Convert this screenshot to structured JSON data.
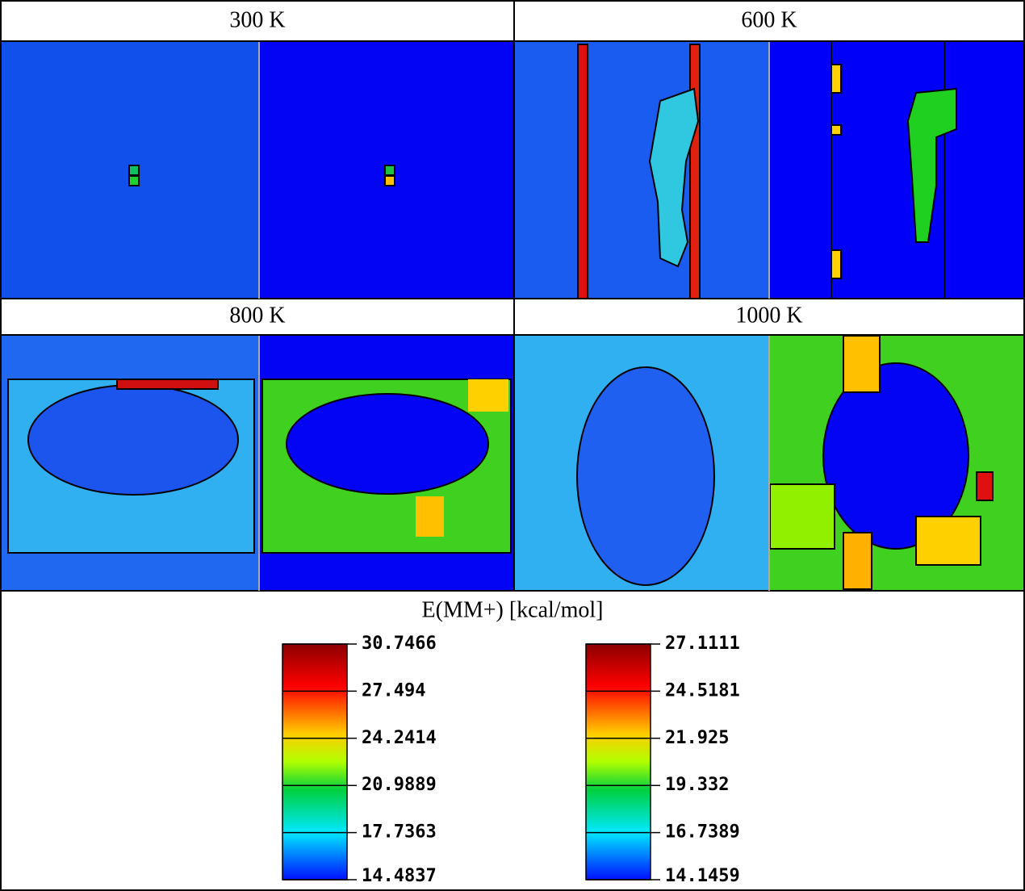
{
  "panels": [
    {
      "label": "300 K"
    },
    {
      "label": "600 K"
    },
    {
      "label": "800 K"
    },
    {
      "label": "1000 K"
    }
  ],
  "legend": {
    "title": "E(MM+) [kcal/mol]",
    "colorbars": [
      {
        "lim": [
          14.4837,
          30.7466
        ],
        "ticks": [
          30.7466,
          27.494,
          24.2414,
          20.9889,
          17.7363,
          14.4837
        ]
      },
      {
        "lim": [
          14.1459,
          27.1111
        ],
        "ticks": [
          27.1111,
          24.5181,
          21.925,
          19.332,
          16.7389,
          14.1459
        ]
      }
    ]
  }
}
